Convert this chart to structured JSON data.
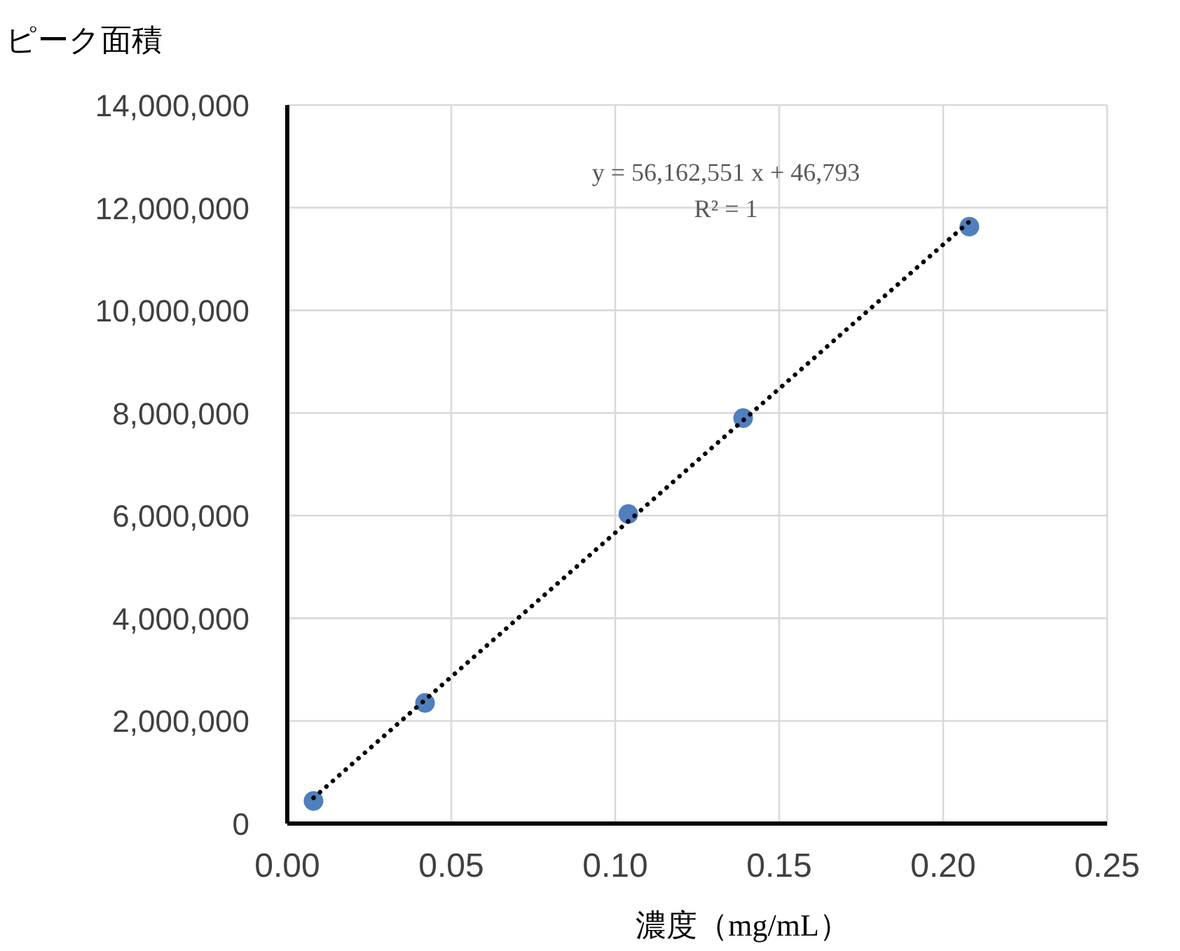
{
  "chart_data": {
    "type": "scatter",
    "xlabel": "濃度（mg/mL）",
    "ylabel": "ピーク面積",
    "annotations": [
      "y = 56,162,551 x + 46,793\nR² = 1"
    ],
    "xlim": [
      0,
      0.25
    ],
    "ylim": [
      0,
      14000000
    ],
    "xticks": [
      {
        "value": 0,
        "label": "0.00"
      },
      {
        "value": 0.05,
        "label": "0.05"
      },
      {
        "value": 0.1,
        "label": "0.10"
      },
      {
        "value": 0.15,
        "label": "0.15"
      },
      {
        "value": 0.2,
        "label": "0.20"
      },
      {
        "value": 0.25,
        "label": "0.25"
      }
    ],
    "yticks": [
      0,
      {
        "value": 2000000,
        "label": "2,000,000"
      },
      {
        "value": 4000000,
        "label": "4,000,000"
      },
      {
        "value": 6000000,
        "label": "6,000,000"
      },
      {
        "value": 8000000,
        "label": "8,000,000"
      },
      {
        "value": 10000000,
        "label": "10,000,000"
      },
      {
        "value": 12000000,
        "label": "12,000,000"
      },
      {
        "value": 14000000,
        "label": "14,000,000"
      }
    ],
    "grid": true,
    "series": [
      {
        "marker": "circle",
        "color": "#4f7fbd",
        "x": [
          0.008,
          0.042,
          0.104,
          0.139,
          0.208
        ],
        "values": [
          440000,
          2350000,
          6030000,
          7900000,
          11630000
        ]
      },
      {
        "type": "line",
        "line_style": "dotted",
        "color": "#000000",
        "x": [
          0.008,
          0.208
        ],
        "values": [
          500000,
          11730000
        ]
      }
    ]
  }
}
